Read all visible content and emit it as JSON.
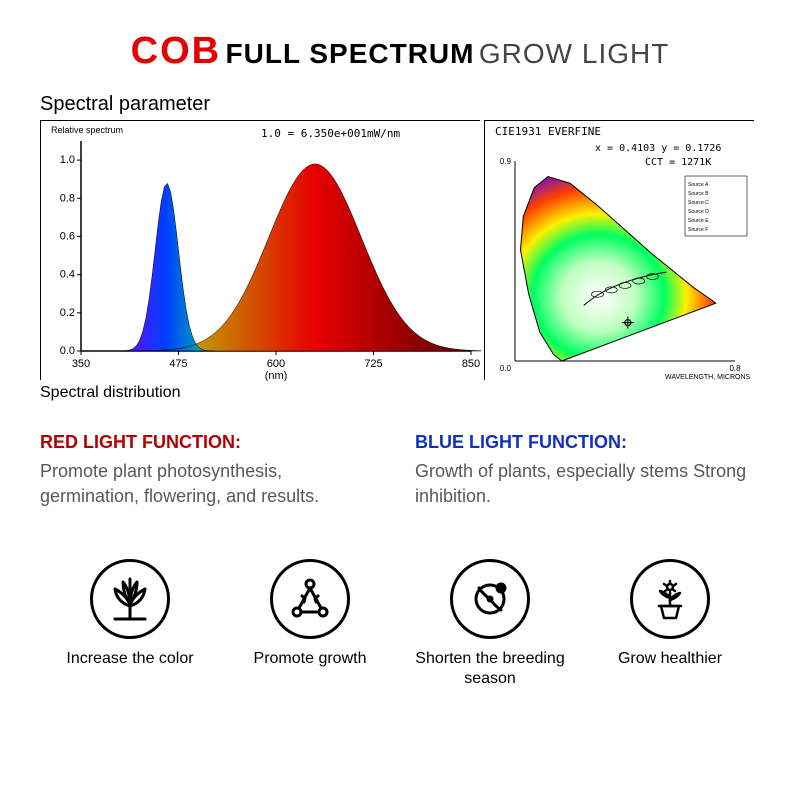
{
  "title": {
    "cob": "COB",
    "full": "FULL SPECTRUM",
    "grow": "GROW LIGHT",
    "cob_color": "#e60000",
    "full_color": "#000000",
    "grow_color": "#444444"
  },
  "subtitle": "Spectral parameter",
  "spectral_chart": {
    "y_label_top": "Relative spectrum",
    "annotation": "1.0 = 6.350e+001mW/nm",
    "x_axis_label": "(nm)",
    "x_ticks": [
      350,
      475,
      600,
      725,
      850
    ],
    "y_ticks": [
      0.0,
      0.2,
      0.4,
      0.6,
      0.8,
      1.0
    ],
    "xlim": [
      350,
      850
    ],
    "ylim": [
      0.0,
      1.1
    ],
    "blue_peak": {
      "center_nm": 460,
      "height": 0.88,
      "width_nm": 35,
      "fill": "#0040ff"
    },
    "red_peak": {
      "center_nm": 650,
      "height": 0.98,
      "width_nm": 140,
      "fill": "#e60000"
    },
    "background": "#ffffff",
    "axis_color": "#000000"
  },
  "cie_chart": {
    "title": "CIE1931  EVERFINE",
    "coords": "x = 0.4103   y = 0.1726",
    "cct": "CCT = 1271K",
    "background": "#ffffff"
  },
  "chart_caption": "Spectral distribution",
  "functions": {
    "red": {
      "heading": "RED LIGHT FUNCTION:",
      "heading_color": "#b00000",
      "body": "Promote plant photosynthesis, germination, flowering, and results.",
      "body_color": "#585858"
    },
    "blue": {
      "heading": "BLUE LIGHT FUNCTION:",
      "heading_color": "#1030c0",
      "body": "Growth of plants, especially stems Strong inhibition.",
      "body_color": "#585858"
    }
  },
  "icons": [
    {
      "name": "succulent-icon",
      "label": "Increase the color"
    },
    {
      "name": "growth-icon",
      "label": "Promote growth"
    },
    {
      "name": "sprout-icon",
      "label": "Shorten the breeding season"
    },
    {
      "name": "flower-pot-icon",
      "label": "Grow healthier"
    }
  ],
  "colors": {
    "icon_stroke": "#000000",
    "text_default": "#000000"
  }
}
